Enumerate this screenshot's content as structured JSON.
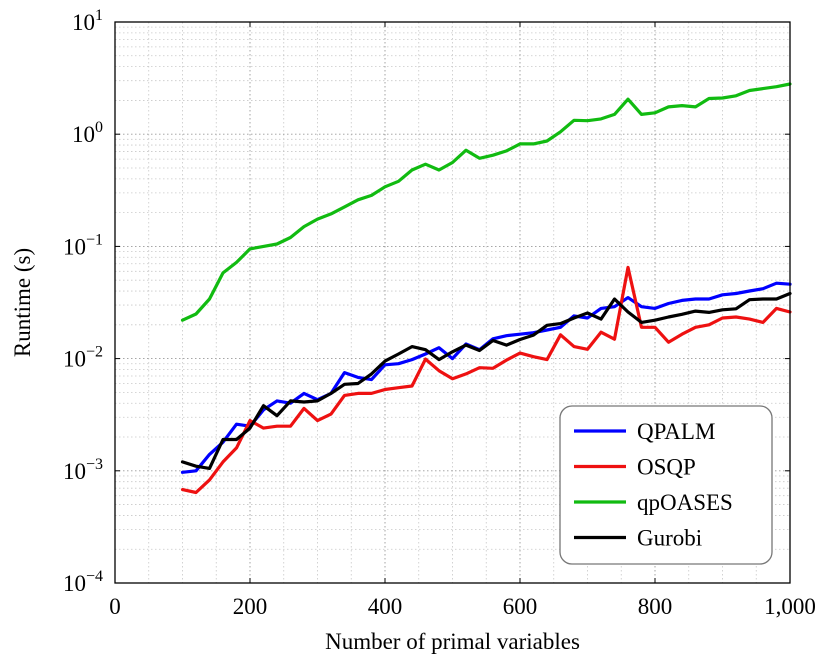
{
  "chart_data": {
    "type": "line",
    "xlabel": "Number of primal variables",
    "ylabel": "Runtime (s)",
    "xlim": [
      0,
      1000
    ],
    "ylim": [
      0.0001,
      10
    ],
    "yscale": "log",
    "grid": true,
    "legend_position": "bottom-right",
    "x_ticks": [
      {
        "value": 0,
        "label": "0"
      },
      {
        "value": 200,
        "label": "200"
      },
      {
        "value": 400,
        "label": "400"
      },
      {
        "value": 600,
        "label": "600"
      },
      {
        "value": 800,
        "label": "800"
      },
      {
        "value": 1000,
        "label": "1,000"
      }
    ],
    "y_ticks": [
      {
        "value": 0.0001,
        "base": "10",
        "exp": "−4"
      },
      {
        "value": 0.001,
        "base": "10",
        "exp": "−3"
      },
      {
        "value": 0.01,
        "base": "10",
        "exp": "−2"
      },
      {
        "value": 0.1,
        "base": "10",
        "exp": "−1"
      },
      {
        "value": 1,
        "base": "10",
        "exp": "0"
      },
      {
        "value": 10,
        "base": "10",
        "exp": "1"
      }
    ],
    "x": [
      100,
      120,
      140,
      160,
      180,
      200,
      220,
      240,
      260,
      280,
      300,
      320,
      340,
      360,
      380,
      400,
      420,
      440,
      460,
      480,
      500,
      520,
      540,
      560,
      580,
      600,
      620,
      640,
      660,
      680,
      700,
      720,
      740,
      760,
      780,
      800,
      820,
      840,
      860,
      880,
      900,
      920,
      940,
      960,
      980,
      1000
    ],
    "series": [
      {
        "name": "QPALM",
        "color": "#0000ff",
        "values": [
          0.00097,
          0.001,
          0.0014,
          0.0018,
          0.0026,
          0.0025,
          0.0035,
          0.0042,
          0.004,
          0.0049,
          0.0043,
          0.0049,
          0.0075,
          0.0068,
          0.0065,
          0.0088,
          0.009,
          0.0098,
          0.011,
          0.0125,
          0.01,
          0.0135,
          0.012,
          0.015,
          0.016,
          0.0165,
          0.017,
          0.018,
          0.019,
          0.024,
          0.023,
          0.028,
          0.029,
          0.035,
          0.029,
          0.028,
          0.031,
          0.033,
          0.034,
          0.034,
          0.037,
          0.038,
          0.04,
          0.042,
          0.047,
          0.046
        ]
      },
      {
        "name": "OSQP",
        "color": "#ee1111",
        "values": [
          0.00068,
          0.00064,
          0.00083,
          0.0012,
          0.0016,
          0.0028,
          0.0024,
          0.0025,
          0.0025,
          0.0036,
          0.0028,
          0.0032,
          0.0047,
          0.0049,
          0.0049,
          0.0053,
          0.0055,
          0.0057,
          0.0099,
          0.0078,
          0.0066,
          0.0073,
          0.0083,
          0.0082,
          0.0097,
          0.0112,
          0.0104,
          0.0098,
          0.0163,
          0.0128,
          0.0121,
          0.0172,
          0.0149,
          0.065,
          0.019,
          0.019,
          0.014,
          0.0165,
          0.019,
          0.02,
          0.023,
          0.0235,
          0.0225,
          0.021,
          0.028,
          0.026
        ]
      },
      {
        "name": "qpOASES",
        "color": "#11bb11",
        "values": [
          0.022,
          0.025,
          0.034,
          0.058,
          0.072,
          0.095,
          0.1,
          0.105,
          0.12,
          0.15,
          0.175,
          0.195,
          0.225,
          0.26,
          0.285,
          0.34,
          0.38,
          0.48,
          0.54,
          0.48,
          0.56,
          0.72,
          0.61,
          0.65,
          0.71,
          0.82,
          0.82,
          0.87,
          1.05,
          1.33,
          1.32,
          1.37,
          1.5,
          2.05,
          1.5,
          1.55,
          1.75,
          1.8,
          1.75,
          2.08,
          2.1,
          2.2,
          2.45,
          2.55,
          2.65,
          2.8
        ]
      },
      {
        "name": "Gurobi",
        "color": "#000000",
        "values": [
          0.0012,
          0.0011,
          0.00105,
          0.0019,
          0.0019,
          0.0024,
          0.0038,
          0.0031,
          0.0042,
          0.0041,
          0.0042,
          0.0049,
          0.0059,
          0.006,
          0.0073,
          0.0095,
          0.011,
          0.0128,
          0.012,
          0.0098,
          0.0115,
          0.0132,
          0.0118,
          0.0145,
          0.0132,
          0.0148,
          0.0162,
          0.0198,
          0.0205,
          0.023,
          0.0255,
          0.0225,
          0.034,
          0.026,
          0.021,
          0.022,
          0.0235,
          0.0248,
          0.0265,
          0.0258,
          0.0272,
          0.0278,
          0.0335,
          0.034,
          0.034,
          0.038
        ]
      }
    ]
  }
}
